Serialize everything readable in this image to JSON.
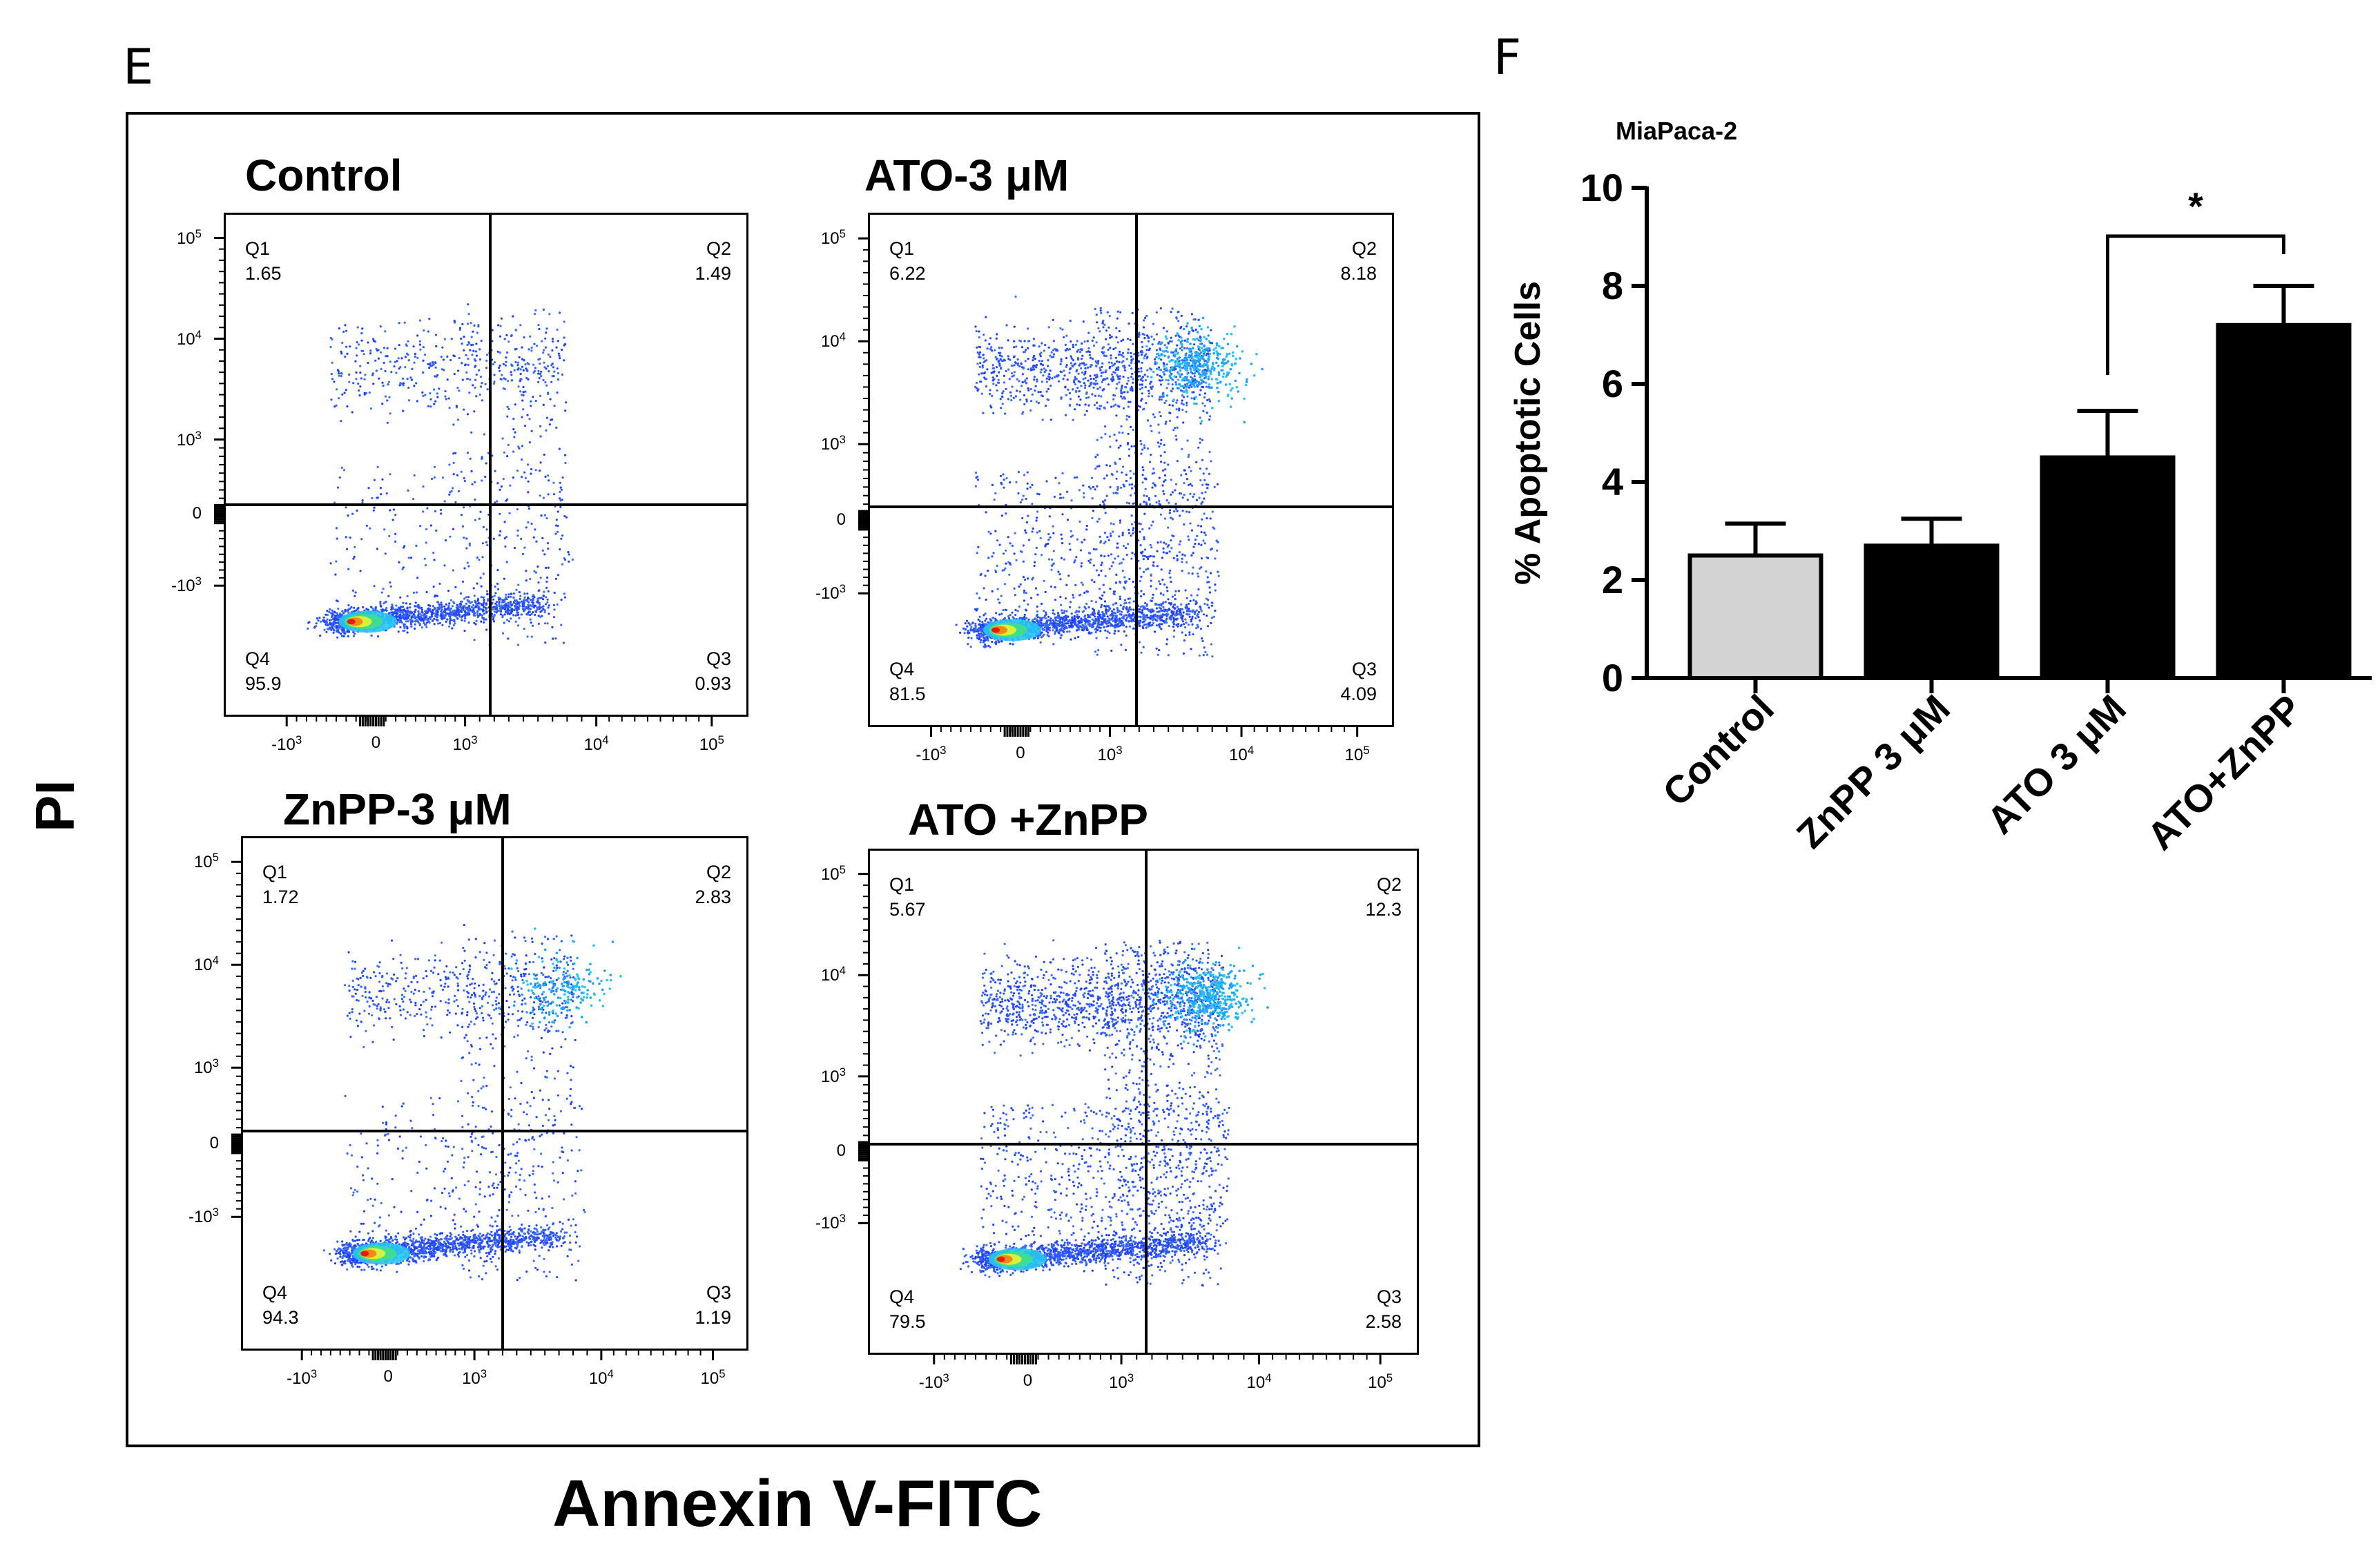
{
  "panels": {
    "left_letter": "E",
    "right_letter": "F"
  },
  "flow": {
    "y_title": "PI",
    "x_title": "Annexin V-FITC",
    "y_tick_labels": [
      "10^5",
      "10^4",
      "10^3",
      "0",
      "-10^3"
    ],
    "x_tick_labels": [
      "-10^3",
      "0",
      "10^3",
      "10^4",
      "10^5"
    ],
    "plots": [
      {
        "title": "Control",
        "q1_label": "Q1",
        "q1": "1.65",
        "q2_label": "Q2",
        "q2": "1.49",
        "q3_label": "Q3",
        "q3": "0.93",
        "q4_label": "Q4",
        "q4": "95.9"
      },
      {
        "title": "ATO-3 μM",
        "q1_label": "Q1",
        "q1": "6.22",
        "q2_label": "Q2",
        "q2": "8.18",
        "q3_label": "Q3",
        "q3": "4.09",
        "q4_label": "Q4",
        "q4": "81.5"
      },
      {
        "title": "ZnPP-3 μM",
        "q1_label": "Q1",
        "q1": "1.72",
        "q2_label": "Q2",
        "q2": "2.83",
        "q3_label": "Q3",
        "q3": "1.19",
        "q4_label": "Q4",
        "q4": "94.3"
      },
      {
        "title": "ATO +ZnPP",
        "q1_label": "Q1",
        "q1": "5.67",
        "q2_label": "Q2",
        "q2": "12.3",
        "q3_label": "Q3",
        "q3": "2.58",
        "q4_label": "Q4",
        "q4": "79.5"
      }
    ]
  },
  "chart_data": {
    "type": "bar",
    "title": "MiaPaca-2",
    "ylabel": "% Apoptotic Cells",
    "xlabel": "",
    "categories": [
      "Control",
      "ZnPP 3 μM",
      "ATO 3 μM",
      "ATO+ZnPP"
    ],
    "values": [
      2.5,
      2.7,
      4.5,
      7.2
    ],
    "errors": [
      0.65,
      0.55,
      0.95,
      0.8
    ],
    "bar_colors": [
      "#d3d3d3",
      "#000000",
      "#000000",
      "#000000"
    ],
    "ylim": [
      0,
      10
    ],
    "yticks": [
      0,
      2,
      4,
      6,
      8,
      10
    ],
    "significance": {
      "from": 2,
      "to": 3,
      "label": "*"
    },
    "grid": false
  }
}
